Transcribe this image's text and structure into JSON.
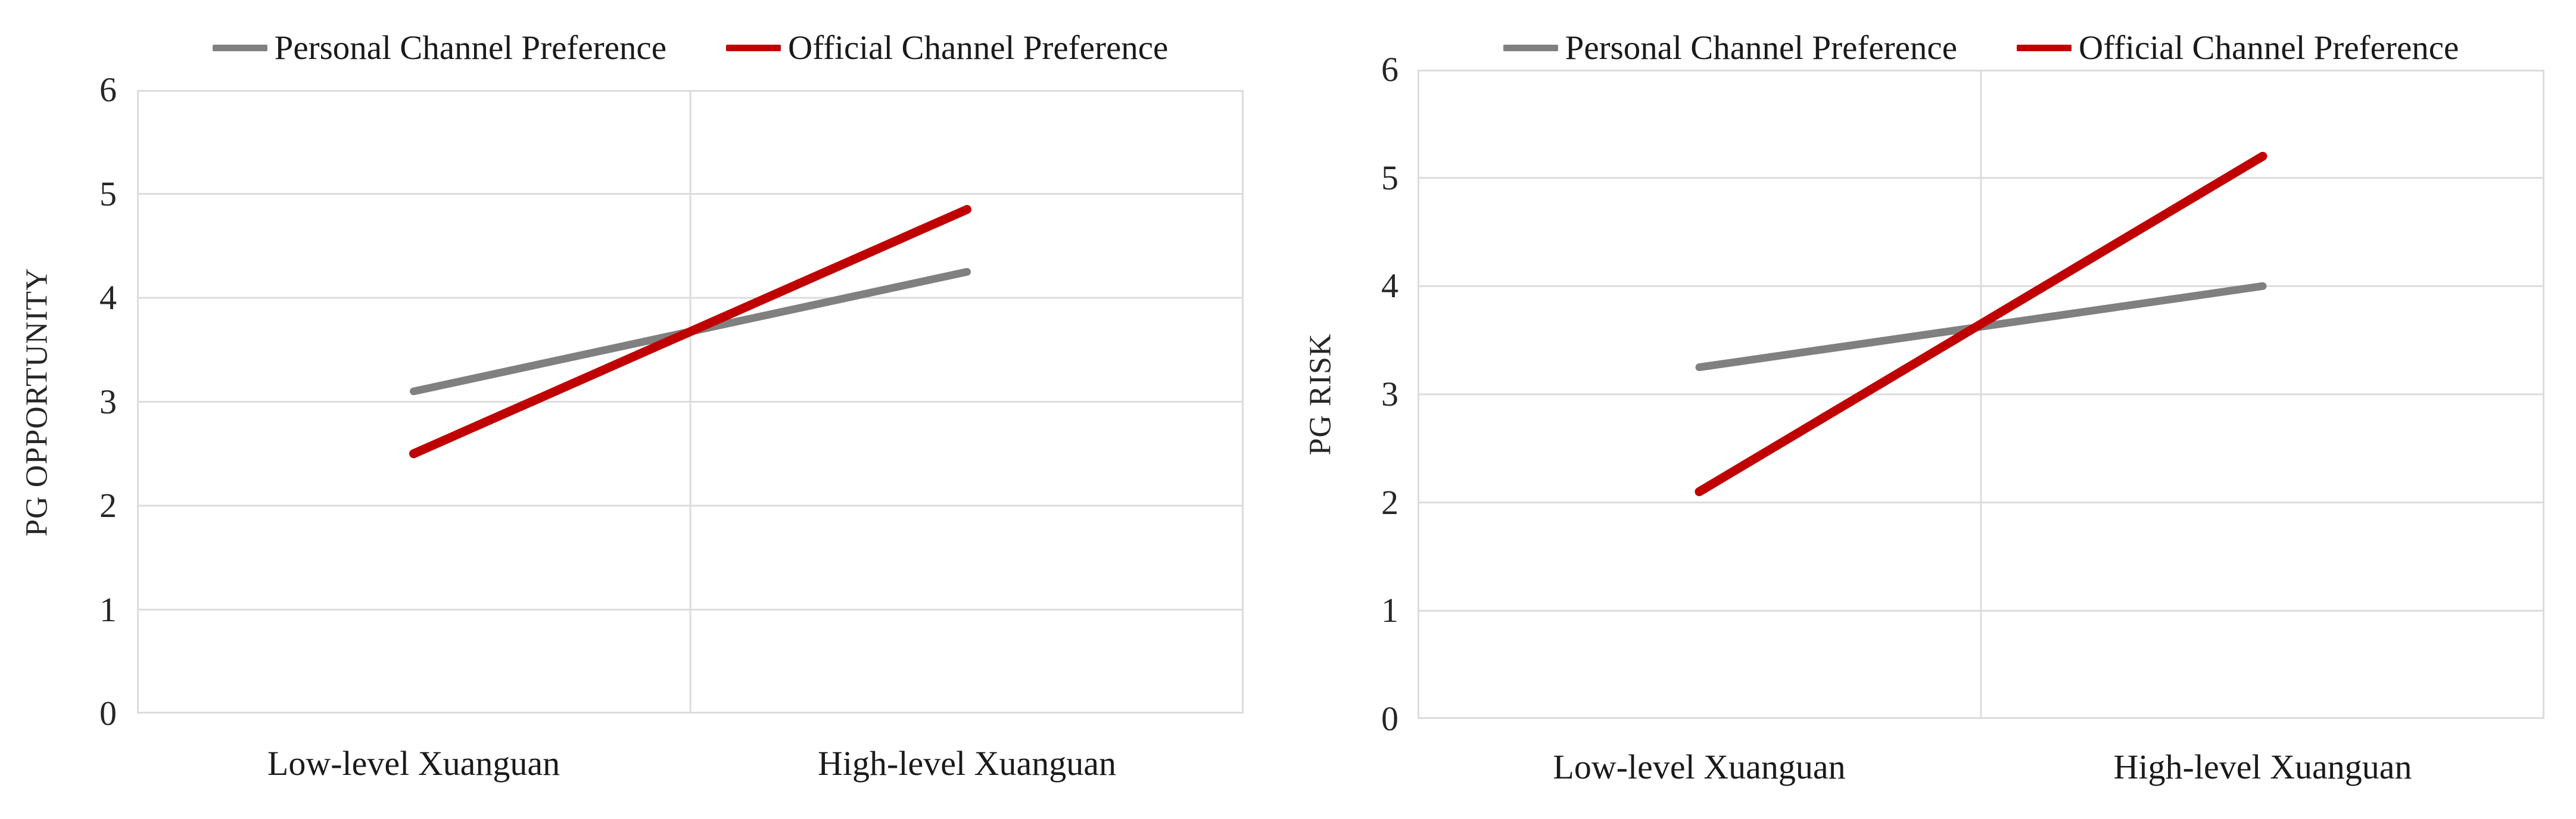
{
  "figure": {
    "background": "#ffffff",
    "text_color": "#1a1a1a",
    "grid_color": "#dcdcdc"
  },
  "chart_data": [
    {
      "type": "line",
      "title": "",
      "xlabel": "",
      "ylabel": "PG OPPORTUNITY",
      "categories": [
        "Low-level Xuanguan",
        "High-level Xuanguan"
      ],
      "series": [
        {
          "name": "Personal Channel Preference",
          "color": "#808080",
          "values": [
            3.1,
            4.25
          ]
        },
        {
          "name": "Official Channel Preference",
          "color": "#C00000",
          "values": [
            2.5,
            4.85
          ]
        }
      ],
      "ylim": [
        0,
        6
      ],
      "y_ticks": [
        0,
        1,
        2,
        3,
        4,
        5,
        6
      ],
      "grid": true,
      "legend_position": "top"
    },
    {
      "type": "line",
      "title": "",
      "xlabel": "",
      "ylabel": "PG RISK",
      "categories": [
        "Low-level Xuanguan",
        "High-level Xuanguan"
      ],
      "series": [
        {
          "name": "Personal Channel Preference",
          "color": "#808080",
          "values": [
            3.25,
            4.0
          ]
        },
        {
          "name": "Official Channel Preference",
          "color": "#C00000",
          "values": [
            2.1,
            5.2
          ]
        }
      ],
      "ylim": [
        0,
        6
      ],
      "y_ticks": [
        0,
        1,
        2,
        3,
        4,
        5,
        6
      ],
      "grid": true,
      "legend_position": "top"
    }
  ]
}
